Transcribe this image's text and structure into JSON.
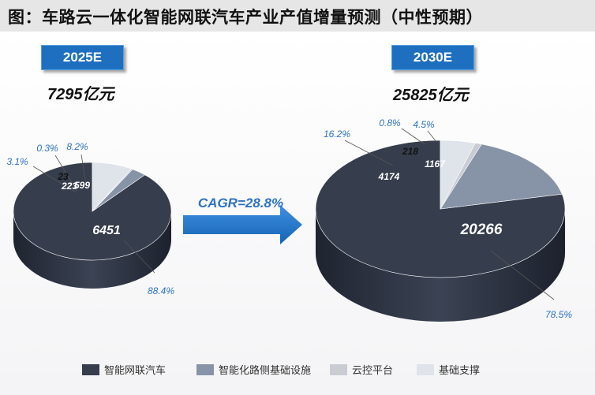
{
  "title": "图：车路云一体化智能网联汽车产业产值增量预测（中性预期）",
  "cagr_label": "CAGR=28.8%",
  "colors": {
    "vehicle": "#363d4c",
    "roadside": "#8794a8",
    "cloud": "#c9ccd2",
    "basic": "#dfe3ea",
    "label_blue": "#2b72c4",
    "arrow": "#1f73c6",
    "year_box": "#1e6fbf"
  },
  "chart_data": [
    {
      "type": "pie",
      "year_label": "2025E",
      "total_label": "7295亿元",
      "categories": [
        "智能网联汽车",
        "智能化路侧基础设施",
        "云控平台",
        "基础支撑"
      ],
      "values": [
        6451,
        223,
        23,
        599
      ],
      "value_labels": [
        "6451",
        "223",
        "23",
        "599"
      ],
      "percent_labels": [
        "88.4%",
        "3.1%",
        "0.3%",
        "8.2%"
      ]
    },
    {
      "type": "pie",
      "year_label": "2030E",
      "total_label": "25825亿元",
      "categories": [
        "智能网联汽车",
        "智能化路侧基础设施",
        "云控平台",
        "基础支撑"
      ],
      "values": [
        20266,
        4174,
        218,
        1167
      ],
      "value_labels": [
        "20266",
        "4174",
        "218",
        "1167"
      ],
      "percent_labels": [
        "78.5%",
        "16.2%",
        "0.8%",
        "4.5%"
      ]
    }
  ],
  "legend": [
    {
      "label": "智能网联汽车",
      "color": "#363d4c"
    },
    {
      "label": "智能化路侧基础设施",
      "color": "#8794a8"
    },
    {
      "label": "云控平台",
      "color": "#c9ccd2"
    },
    {
      "label": "基础支撑",
      "color": "#dfe3ea"
    }
  ]
}
